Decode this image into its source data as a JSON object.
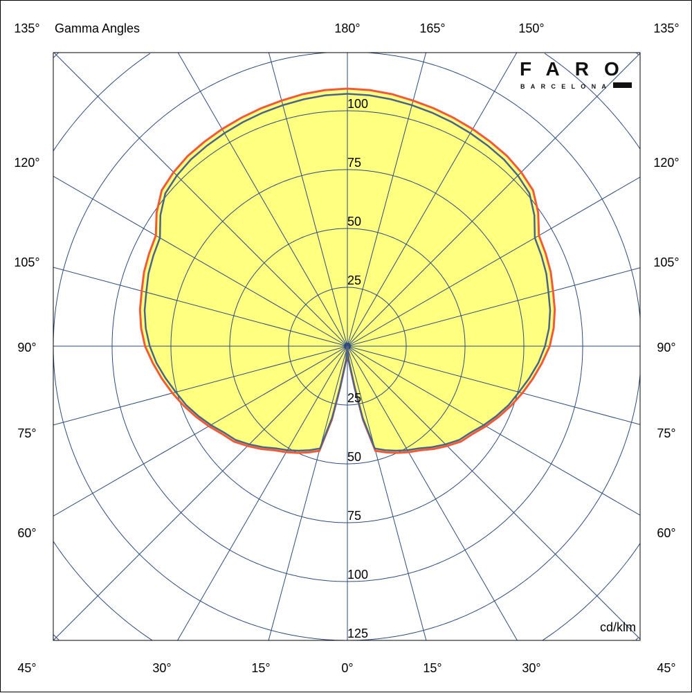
{
  "chart_data": {
    "type": "polar",
    "title": "Gamma Angles",
    "unit": "cd/klm",
    "brand": {
      "name": "FARO",
      "sub": "BARCELONA"
    },
    "radial_ticks": [
      25,
      50,
      75,
      100,
      125
    ],
    "rmax": 125,
    "angle_labels": {
      "left": [
        "135°",
        "120°",
        "105°",
        "90°",
        "75°",
        "60°",
        "45°"
      ],
      "right": [
        "135°",
        "120°",
        "105°",
        "90°",
        "75°",
        "60°",
        "45°"
      ],
      "top": [
        "180°",
        "165°",
        "150°"
      ],
      "bottom": [
        "30°",
        "15°",
        "0°",
        "15°",
        "30°"
      ]
    },
    "gamma": [
      0,
      5,
      10,
      12,
      15,
      20,
      25,
      30,
      35,
      40,
      45,
      50,
      55,
      60,
      65,
      70,
      75,
      80,
      85,
      90,
      95,
      100,
      105,
      110,
      115,
      120,
      125,
      130,
      135,
      140,
      145,
      150,
      155,
      160,
      165,
      170,
      175,
      180
    ],
    "series": [
      {
        "color": "#f05a3a",
        "values": [
          0,
          6,
          18,
          32,
          46,
          48,
          50,
          52,
          54,
          57,
          60,
          63,
          65,
          68,
          71,
          74,
          77,
          80,
          83,
          86,
          88,
          89.5,
          90.5,
          92,
          93,
          94,
          99,
          103,
          104.5,
          105.5,
          106,
          106.5,
          107,
          107.5,
          108,
          108.7,
          109.2,
          109.4
        ]
      },
      {
        "color": "#4a6488",
        "values": [
          0,
          6,
          18,
          31,
          45,
          47,
          49,
          51,
          53,
          56,
          59,
          62,
          64,
          67,
          70,
          73,
          75.5,
          78.5,
          81.5,
          84,
          86,
          87.5,
          88.5,
          90,
          91,
          92,
          97,
          101,
          102.5,
          103.5,
          104,
          104.5,
          105,
          105.5,
          106,
          106.5,
          107,
          107.2
        ]
      }
    ],
    "fill_color": "#ffff80",
    "grid_color": "#2b4a7e",
    "grid": true
  }
}
